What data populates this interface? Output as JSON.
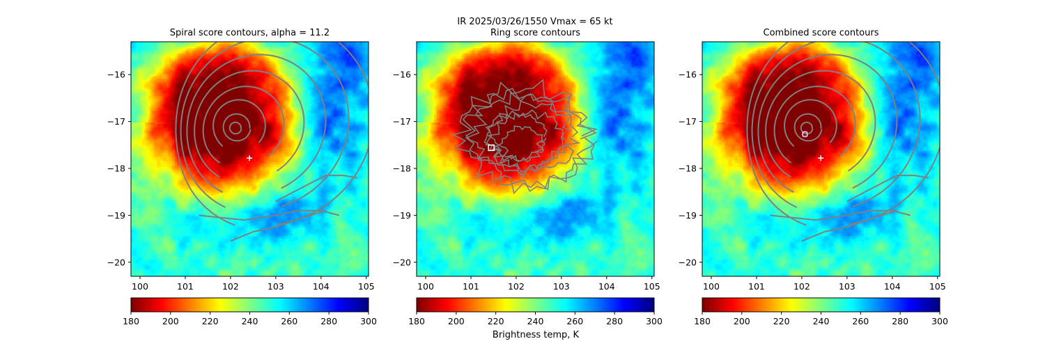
{
  "figure": {
    "suptitle_line1": "IR  2025/03/26/1550    Vmax = 65 kt",
    "colorbar_label": "Brightness temp, K"
  },
  "chart_data": [
    {
      "type": "heatmap",
      "title": "Spiral score contours, alpha = 11.2",
      "xlim": [
        99.8,
        105.05
      ],
      "ylim": [
        -20.3,
        -15.3
      ],
      "x_ticks": [
        100,
        101,
        102,
        103,
        104,
        105
      ],
      "y_ticks": [
        -16,
        -17,
        -18,
        -19,
        -20
      ],
      "colorbar": {
        "vmin": 180,
        "vmax": 300,
        "ticks": [
          180,
          200,
          220,
          240,
          260,
          280,
          300
        ],
        "colormap": "jet_r"
      },
      "storm_center": [
        102.1,
        -17.15
      ],
      "markers": [
        {
          "symbol": "plus",
          "color": "#ffffff",
          "x": 102.42,
          "y": -17.78
        }
      ],
      "contour_color": "#808080",
      "contours": "spiral"
    },
    {
      "type": "heatmap",
      "title": "Ring score contours",
      "xlim": [
        99.8,
        105.05
      ],
      "ylim": [
        -20.3,
        -15.3
      ],
      "x_ticks": [
        100,
        101,
        102,
        103,
        104,
        105
      ],
      "y_ticks": [
        -16,
        -17,
        -18,
        -19,
        -20
      ],
      "colorbar": {
        "vmin": 180,
        "vmax": 300,
        "ticks": [
          180,
          200,
          220,
          240,
          260,
          280,
          300
        ],
        "colormap": "jet_r"
      },
      "storm_center": [
        102.1,
        -17.15
      ],
      "markers": [
        {
          "symbol": "square",
          "color": "#ffffff",
          "x": 101.45,
          "y": -17.56
        }
      ],
      "contour_color": "#808080",
      "contours": "ring"
    },
    {
      "type": "heatmap",
      "title": "Combined score contours",
      "xlim": [
        99.8,
        105.05
      ],
      "ylim": [
        -20.3,
        -15.3
      ],
      "x_ticks": [
        100,
        101,
        102,
        103,
        104,
        105
      ],
      "y_ticks": [
        -16,
        -17,
        -18,
        -19,
        -20
      ],
      "colorbar": {
        "vmin": 180,
        "vmax": 300,
        "ticks": [
          180,
          200,
          220,
          240,
          260,
          280,
          300
        ],
        "colormap": "jet_r"
      },
      "storm_center": [
        102.1,
        -17.15
      ],
      "markers": [
        {
          "symbol": "plus",
          "color": "#ffffff",
          "x": 102.42,
          "y": -17.78
        },
        {
          "symbol": "circle",
          "color": "#e040e0",
          "x": 102.07,
          "y": -17.27
        }
      ],
      "contour_color": "#808080",
      "contours": "spiral"
    }
  ]
}
